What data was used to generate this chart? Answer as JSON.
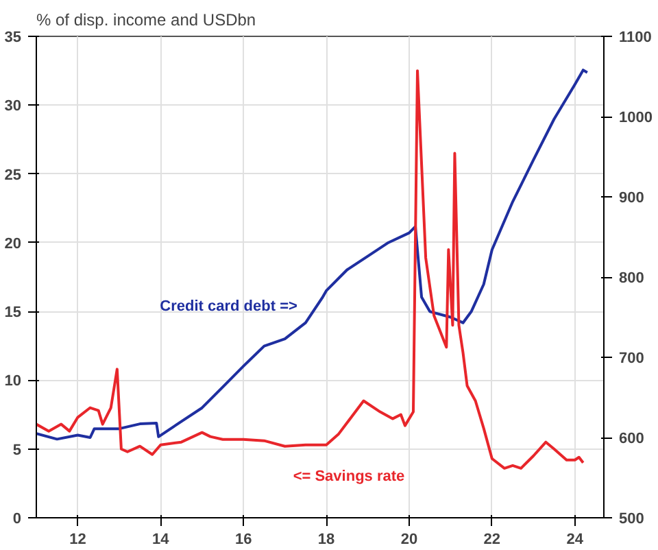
{
  "chart_data": {
    "type": "line",
    "title": "% of disp. income and USDbn",
    "xlim": [
      11,
      24.7
    ],
    "xticks": [
      12,
      14,
      16,
      18,
      20,
      22,
      24
    ],
    "ylim": [
      0,
      35
    ],
    "yticks": [
      0,
      5,
      10,
      15,
      20,
      25,
      30,
      35
    ],
    "y2lim": [
      500,
      1100
    ],
    "y2ticks": [
      500,
      600,
      700,
      800,
      900,
      1000,
      1100
    ],
    "grid": true,
    "series": [
      {
        "name": "Credit card debt =>",
        "color": "#1f2fa0",
        "axis": "y2",
        "x": [
          11,
          11.5,
          12,
          12.3,
          12.4,
          13,
          13.5,
          13.9,
          13.95,
          14.5,
          15,
          15.5,
          16,
          16.5,
          17,
          17.5,
          17.9,
          18,
          18.5,
          19,
          19.5,
          20,
          20.15,
          20.3,
          20.5,
          21,
          21.3,
          21.5,
          21.8,
          22,
          22.5,
          23,
          23.5,
          24,
          24.2,
          24.3
        ],
        "values": [
          605,
          598,
          603,
          600,
          611,
          611,
          617,
          618,
          601,
          620,
          637,
          663,
          689,
          714,
          723,
          743,
          774,
          783,
          809,
          826,
          843,
          855,
          863,
          775,
          757,
          750,
          743,
          757,
          791,
          834,
          894,
          946,
          997,
          1040,
          1058,
          1055
        ]
      },
      {
        "name": "<= Savings rate",
        "color": "#e8262b",
        "x": [
          11,
          11.3,
          11.6,
          11.8,
          12,
          12.3,
          12.5,
          12.6,
          12.8,
          12.95,
          13.05,
          13.2,
          13.5,
          13.8,
          14,
          14.5,
          15,
          15.2,
          15.5,
          16,
          16.5,
          17,
          17.5,
          18,
          18.3,
          18.9,
          19.3,
          19.6,
          19.8,
          19.9,
          20.1,
          20.2,
          20.4,
          20.6,
          20.9,
          20.95,
          21.05,
          21.1,
          21.2,
          21.3,
          21.4,
          21.6,
          21.8,
          22,
          22.3,
          22.5,
          22.7,
          23,
          23.3,
          23.5,
          23.8,
          24,
          24.1,
          24.2
        ],
        "values": [
          6.8,
          6.3,
          6.8,
          6.3,
          7.3,
          8,
          7.8,
          6.8,
          8,
          10.8,
          5,
          4.8,
          5.2,
          4.6,
          5.3,
          5.5,
          6.2,
          5.9,
          5.7,
          5.7,
          5.6,
          5.2,
          5.3,
          5.3,
          6.1,
          8.5,
          7.7,
          7.2,
          7.5,
          6.7,
          7.7,
          32.5,
          18.9,
          14.7,
          12.4,
          19.5,
          14,
          26.5,
          14,
          12,
          9.6,
          8.5,
          6.5,
          4.3,
          3.6,
          3.8,
          3.6,
          4.5,
          5.5,
          5,
          4.2,
          4.2,
          4.4,
          4
        ]
      }
    ]
  }
}
